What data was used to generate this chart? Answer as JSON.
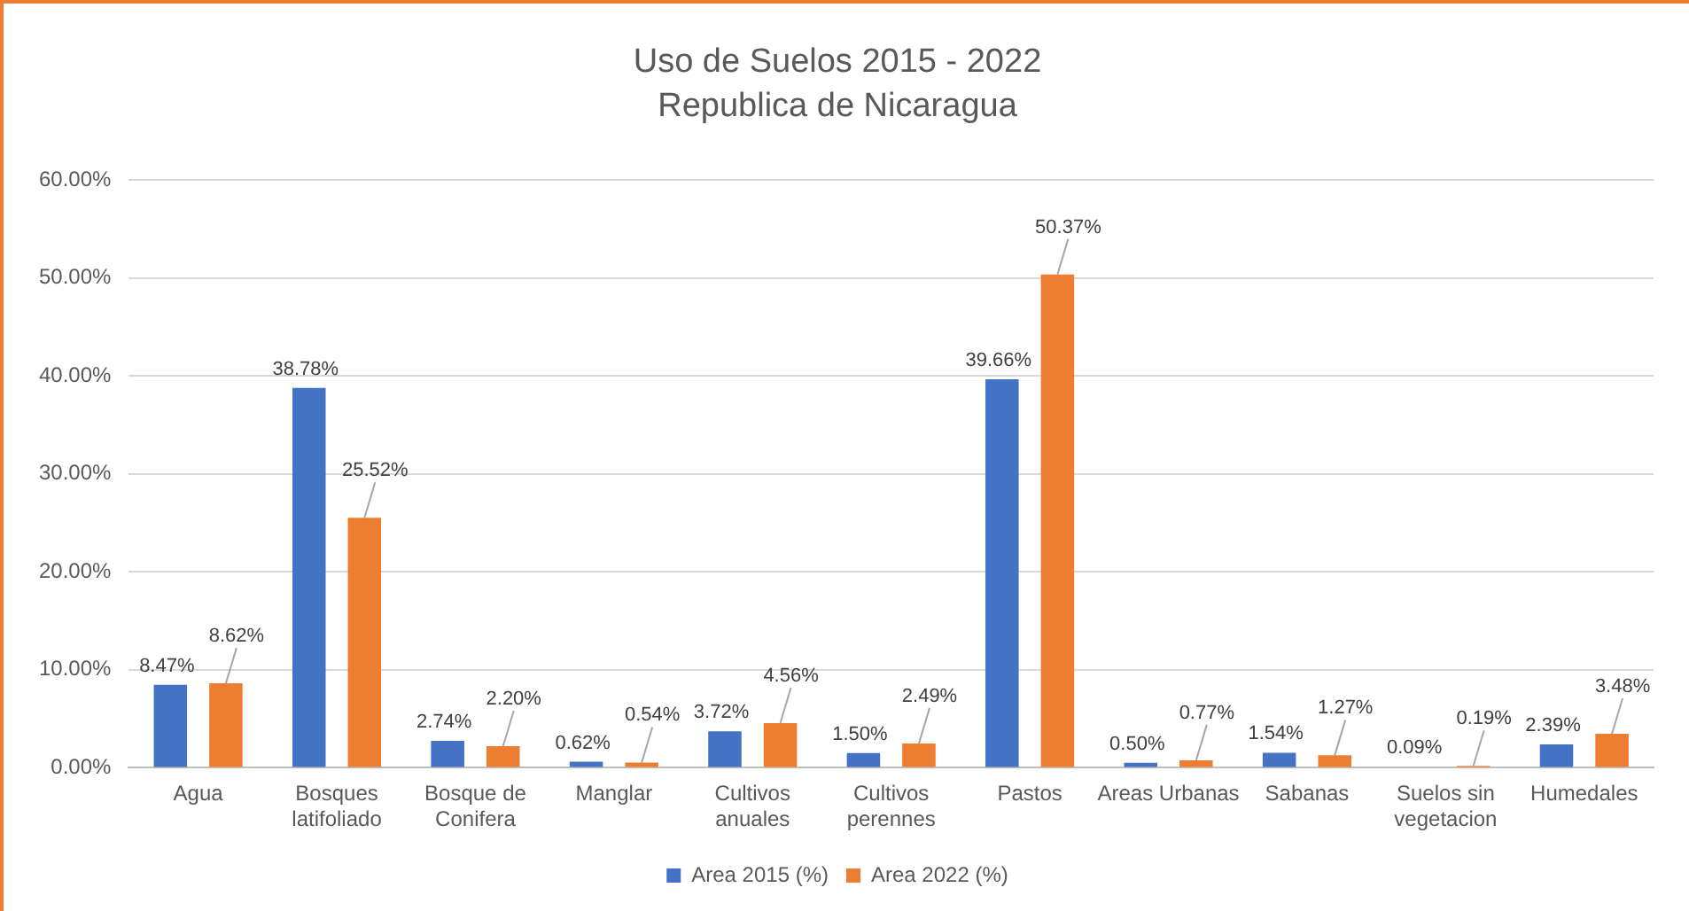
{
  "chart_data": {
    "type": "bar",
    "title": "Uso de Suelos 2015 - 2022",
    "subtitle": "Republica de Nicaragua",
    "categories": [
      "Agua",
      "Bosques latifoliado",
      "Bosque de Conifera",
      "Manglar",
      "Cultivos anuales",
      "Cultivos perennes",
      "Pastos",
      "Areas Urbanas",
      "Sabanas",
      "Suelos sin vegetacion",
      "Humedales"
    ],
    "series": [
      {
        "name": "Area 2015 (%)",
        "color": "#4472c4",
        "values": [
          8.47,
          38.78,
          2.74,
          0.62,
          3.72,
          1.5,
          39.66,
          0.5,
          1.54,
          0.09,
          2.39
        ],
        "value_labels": [
          "8.47%",
          "38.78%",
          "2.74%",
          "0.62%",
          "3.72%",
          "1.50%",
          "39.66%",
          "0.50%",
          "1.54%",
          "0.09%",
          "2.39%"
        ]
      },
      {
        "name": "Area 2022 (%)",
        "color": "#ed7d31",
        "values": [
          8.62,
          25.52,
          2.2,
          0.54,
          4.56,
          2.49,
          50.37,
          0.77,
          1.27,
          0.19,
          3.48
        ],
        "value_labels": [
          "8.62%",
          "25.52%",
          "2.20%",
          "0.54%",
          "4.56%",
          "2.49%",
          "50.37%",
          "0.77%",
          "1.27%",
          "0.19%",
          "3.48%"
        ]
      }
    ],
    "ylim": [
      0,
      60
    ],
    "yticks": [
      {
        "value": 0,
        "label": "0.00%"
      },
      {
        "value": 10,
        "label": "10.00%"
      },
      {
        "value": 20,
        "label": "20.00%"
      },
      {
        "value": 30,
        "label": "30.00%"
      },
      {
        "value": 40,
        "label": "40.00%"
      },
      {
        "value": 50,
        "label": "50.00%"
      },
      {
        "value": 60,
        "label": "60.00%"
      }
    ],
    "grid": "y",
    "legend": "bottom"
  }
}
